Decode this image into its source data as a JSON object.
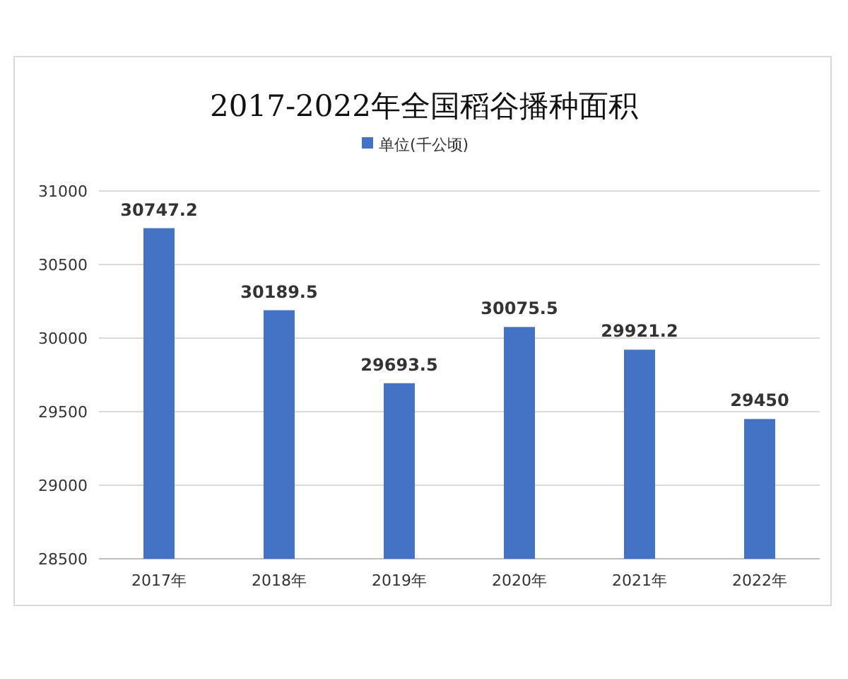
{
  "chart_data": {
    "type": "bar",
    "title": "2017-2022年全国稻谷播种面积",
    "categories": [
      "2017年",
      "2018年",
      "2019年",
      "2020年",
      "2021年",
      "2022年"
    ],
    "series": [
      {
        "name": "单位(千公顷)",
        "color": "#4472c4",
        "values": [
          30747.2,
          30189.5,
          29693.5,
          30075.5,
          29921.2,
          29450
        ]
      }
    ],
    "ylim": [
      28500,
      31000
    ],
    "yticks": [
      28500,
      29000,
      29500,
      30000,
      30500,
      31000
    ],
    "grid": "y",
    "legend": "top",
    "data_labels": true
  }
}
